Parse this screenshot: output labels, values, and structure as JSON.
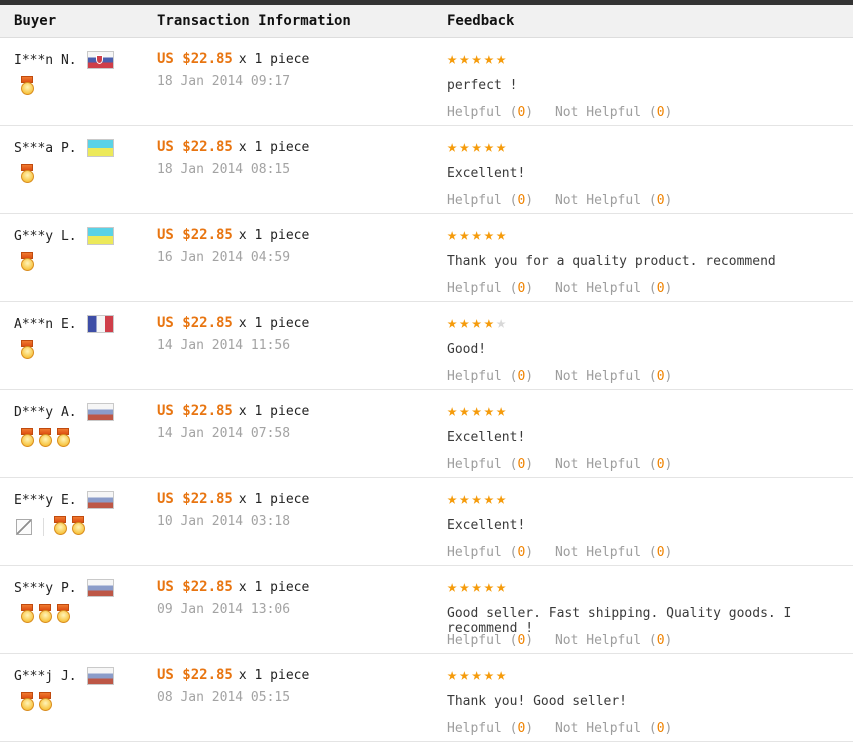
{
  "header": {
    "buyer": "Buyer",
    "transaction": "Transaction Information",
    "feedback": "Feedback"
  },
  "labels": {
    "helpful": "Helpful",
    "not_helpful": "Not Helpful"
  },
  "misc": {
    "paren_open": "(",
    "paren_close": ")"
  },
  "colors": {
    "topbar": "#333333",
    "header_bg": "#f1f1f1",
    "price_orange": "#e87511",
    "star_orange": "#f59b0b",
    "star_gray": "#d8d8d8",
    "count_orange": "#f08300",
    "muted_gray": "#9d9d9d"
  },
  "icons": {
    "medal": "medal-icon",
    "broken_image": "broken-image-icon",
    "star": "star-icon",
    "flag": "country-flag-icon"
  },
  "rows": [
    {
      "buyer": {
        "name": "I***n N.",
        "flag": "sk",
        "country": "Slovakia",
        "medals": 1,
        "has_broken_icon": false
      },
      "transaction": {
        "price": "US $22.85",
        "quantity": "x 1 piece",
        "date": "18 Jan 2014 09:17"
      },
      "feedback": {
        "stars": 5,
        "comment": "perfect !",
        "helpful_count": "0",
        "not_helpful_count": "0"
      }
    },
    {
      "buyer": {
        "name": "S***a P.",
        "flag": "ua",
        "country": "Ukraine",
        "medals": 1,
        "has_broken_icon": false
      },
      "transaction": {
        "price": "US $22.85",
        "quantity": "x 1 piece",
        "date": "18 Jan 2014 08:15"
      },
      "feedback": {
        "stars": 5,
        "comment": "Excellent!",
        "helpful_count": "0",
        "not_helpful_count": "0"
      }
    },
    {
      "buyer": {
        "name": "G***y L.",
        "flag": "ua",
        "country": "Ukraine",
        "medals": 1,
        "has_broken_icon": false
      },
      "transaction": {
        "price": "US $22.85",
        "quantity": "x 1 piece",
        "date": "16 Jan 2014 04:59"
      },
      "feedback": {
        "stars": 5,
        "comment": "Thank you for a quality product. recommend",
        "helpful_count": "0",
        "not_helpful_count": "0"
      }
    },
    {
      "buyer": {
        "name": "A***n E.",
        "flag": "fr",
        "country": "France",
        "medals": 1,
        "has_broken_icon": false
      },
      "transaction": {
        "price": "US $22.85",
        "quantity": "x 1 piece",
        "date": "14 Jan 2014 11:56"
      },
      "feedback": {
        "stars": 4,
        "comment": "Good!",
        "helpful_count": "0",
        "not_helpful_count": "0"
      }
    },
    {
      "buyer": {
        "name": "D***y A.",
        "flag": "ru",
        "country": "Russia",
        "medals": 3,
        "has_broken_icon": false
      },
      "transaction": {
        "price": "US $22.85",
        "quantity": "x 1 piece",
        "date": "14 Jan 2014 07:58"
      },
      "feedback": {
        "stars": 5,
        "comment": "Excellent!",
        "helpful_count": "0",
        "not_helpful_count": "0"
      }
    },
    {
      "buyer": {
        "name": "E***y E.",
        "flag": "ru",
        "country": "Russia",
        "medals": 2,
        "has_broken_icon": true
      },
      "transaction": {
        "price": "US $22.85",
        "quantity": "x 1 piece",
        "date": "10 Jan 2014 03:18"
      },
      "feedback": {
        "stars": 5,
        "comment": "Excellent!",
        "helpful_count": "0",
        "not_helpful_count": "0"
      }
    },
    {
      "buyer": {
        "name": "S***y P.",
        "flag": "ru",
        "country": "Russia",
        "medals": 3,
        "has_broken_icon": false
      },
      "transaction": {
        "price": "US $22.85",
        "quantity": "x 1 piece",
        "date": "09 Jan 2014 13:06"
      },
      "feedback": {
        "stars": 5,
        "comment": "Good seller. Fast shipping. Quality goods. I recommend !",
        "helpful_count": "0",
        "not_helpful_count": "0"
      }
    },
    {
      "buyer": {
        "name": "G***j J.",
        "flag": "ru",
        "country": "Russia",
        "medals": 2,
        "has_broken_icon": false
      },
      "transaction": {
        "price": "US $22.85",
        "quantity": "x 1 piece",
        "date": "08 Jan 2014 05:15"
      },
      "feedback": {
        "stars": 5,
        "comment": "Thank you! Good seller!",
        "helpful_count": "0",
        "not_helpful_count": "0"
      }
    }
  ]
}
